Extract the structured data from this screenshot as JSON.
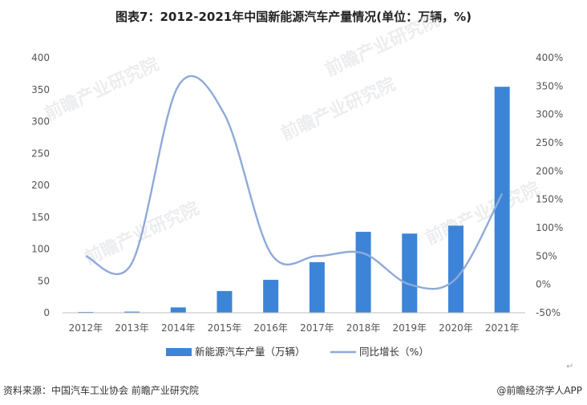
{
  "chart_data": {
    "type": "bar+line",
    "title": "图表7：2012-2021年中国新能源汽车产量情况(单位：万辆，%)",
    "categories": [
      "2012年",
      "2013年",
      "2014年",
      "2015年",
      "2016年",
      "2017年",
      "2018年",
      "2019年",
      "2020年",
      "2021年"
    ],
    "series": [
      {
        "name": "新能源汽车产量（万辆）",
        "type": "bar",
        "axis": "left",
        "color": "#3c84d8",
        "values": [
          1.3,
          1.8,
          8.4,
          34.1,
          51.7,
          79.4,
          127.0,
          124.2,
          136.6,
          354.5
        ]
      },
      {
        "name": "同比增长（%）",
        "type": "line",
        "axis": "right",
        "color": "#8eaad9",
        "smooth": true,
        "values": [
          50,
          38,
          350,
          300,
          55,
          50,
          55,
          0,
          10,
          160
        ]
      }
    ],
    "y_left": {
      "ylim": [
        0,
        400
      ],
      "ticks": [
        "0",
        "50",
        "100",
        "150",
        "200",
        "250",
        "300",
        "350",
        "400"
      ]
    },
    "y_right": {
      "ylim": [
        -50,
        400
      ],
      "ticks": [
        "-50%",
        "0%",
        "50%",
        "100%",
        "150%",
        "200%",
        "250%",
        "300%",
        "350%",
        "400%"
      ]
    },
    "grid": false,
    "legend": "bottom"
  },
  "watermark": "前瞻产业研究院",
  "footer": {
    "source": "资料来源：中国汽车工业协会 前瞻产业研究院",
    "brand": "@前瞻经济学人APP"
  },
  "cursor_mark": "↵"
}
